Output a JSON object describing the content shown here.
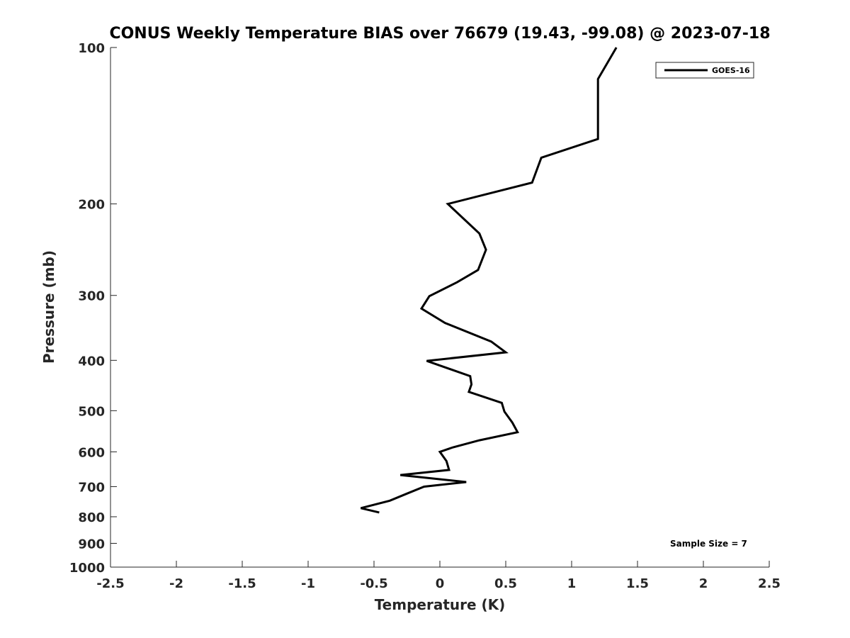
{
  "chart_data": {
    "type": "line",
    "title": "CONUS Weekly Temperature BIAS over 76679 (19.43, -99.08) @ 2023-07-18",
    "xlabel": "Temperature (K)",
    "ylabel": "Pressure (mb)",
    "xlim": [
      -2.5,
      2.5
    ],
    "ylim": [
      100,
      1000
    ],
    "y_scale": "log",
    "y_reversed": true,
    "x_ticks": [
      -2.5,
      -2,
      -1.5,
      -1,
      -0.5,
      0,
      0.5,
      1,
      1.5,
      2,
      2.5
    ],
    "x_tick_labels": [
      "-2.5",
      "-2",
      "-1.5",
      "-1",
      "-0.5",
      "0",
      "0.5",
      "1",
      "1.5",
      "2",
      "2.5"
    ],
    "y_ticks": [
      100,
      200,
      300,
      400,
      500,
      600,
      700,
      800,
      900,
      1000
    ],
    "y_tick_labels": [
      "100",
      "200",
      "300",
      "400",
      "500",
      "600",
      "700",
      "800",
      "900",
      "1000"
    ],
    "grid": false,
    "legend_position": "top-right",
    "series": [
      {
        "name": "GOES-16",
        "color": "#000000",
        "x": [
          1.34,
          1.2,
          1.2,
          1.2,
          0.77,
          0.7,
          0.06,
          0.3,
          0.35,
          0.29,
          0.13,
          -0.08,
          -0.14,
          0.04,
          0.39,
          0.5,
          -0.1,
          0.23,
          0.24,
          0.22,
          0.47,
          0.49,
          0.55,
          0.59,
          0.3,
          0.1,
          0.0,
          0.05,
          0.07,
          -0.3,
          0.2,
          -0.12,
          -0.25,
          -0.38,
          -0.6,
          -0.46
        ],
        "y": [
          100,
          115,
          125,
          150,
          163,
          182,
          200,
          228,
          245,
          268,
          283,
          301,
          318,
          339,
          368,
          386,
          401,
          429,
          445,
          460,
          483,
          502,
          527,
          550,
          570,
          588,
          600,
          625,
          650,
          665,
          686,
          700,
          722,
          745,
          770,
          785
        ]
      }
    ],
    "annotations": [
      "Sample Size = 7"
    ]
  }
}
